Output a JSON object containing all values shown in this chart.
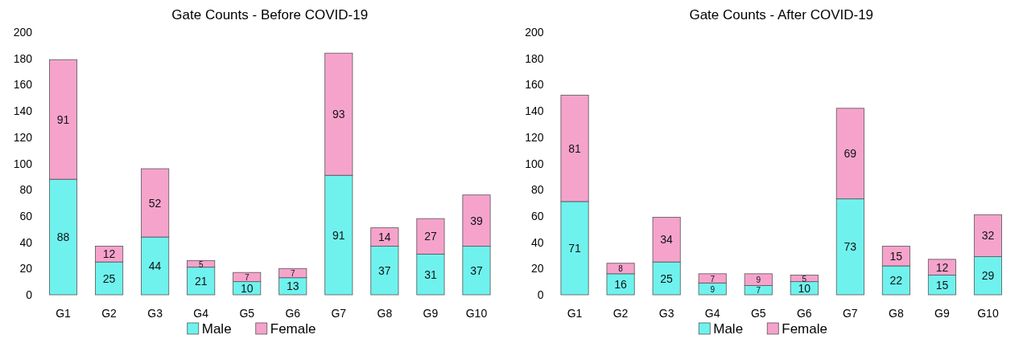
{
  "chart_data": [
    {
      "type": "bar",
      "title": "Gate Counts - Before COVID-19",
      "stacked": true,
      "categories": [
        "G1",
        "G2",
        "G3",
        "G4",
        "G5",
        "G6",
        "G7",
        "G8",
        "G9",
        "G10"
      ],
      "series": [
        {
          "name": "Male",
          "color": "#6ff2ee",
          "values": [
            88,
            25,
            44,
            21,
            10,
            13,
            91,
            37,
            31,
            37
          ]
        },
        {
          "name": "Female",
          "color": "#f6a3cc",
          "values": [
            91,
            12,
            52,
            5,
            7,
            7,
            93,
            14,
            27,
            39
          ]
        }
      ],
      "ylim": [
        0,
        200
      ],
      "yticks": [
        0,
        20,
        40,
        60,
        80,
        100,
        120,
        140,
        160,
        180,
        200
      ],
      "legend": "bottom",
      "data_labels": true
    },
    {
      "type": "bar",
      "title": "Gate Counts - After COVID-19",
      "stacked": true,
      "categories": [
        "G1",
        "G2",
        "G3",
        "G4",
        "G5",
        "G6",
        "G7",
        "G8",
        "G9",
        "G10"
      ],
      "series": [
        {
          "name": "Male",
          "color": "#6ff2ee",
          "values": [
            71,
            16,
            25,
            9,
            7,
            10,
            73,
            22,
            15,
            29
          ]
        },
        {
          "name": "Female",
          "color": "#f6a3cc",
          "values": [
            81,
            8,
            34,
            7,
            9,
            5,
            69,
            15,
            12,
            32
          ]
        }
      ],
      "ylim": [
        0,
        200
      ],
      "yticks": [
        0,
        20,
        40,
        60,
        80,
        100,
        120,
        140,
        160,
        180,
        200
      ],
      "legend": "bottom",
      "data_labels": true
    }
  ]
}
